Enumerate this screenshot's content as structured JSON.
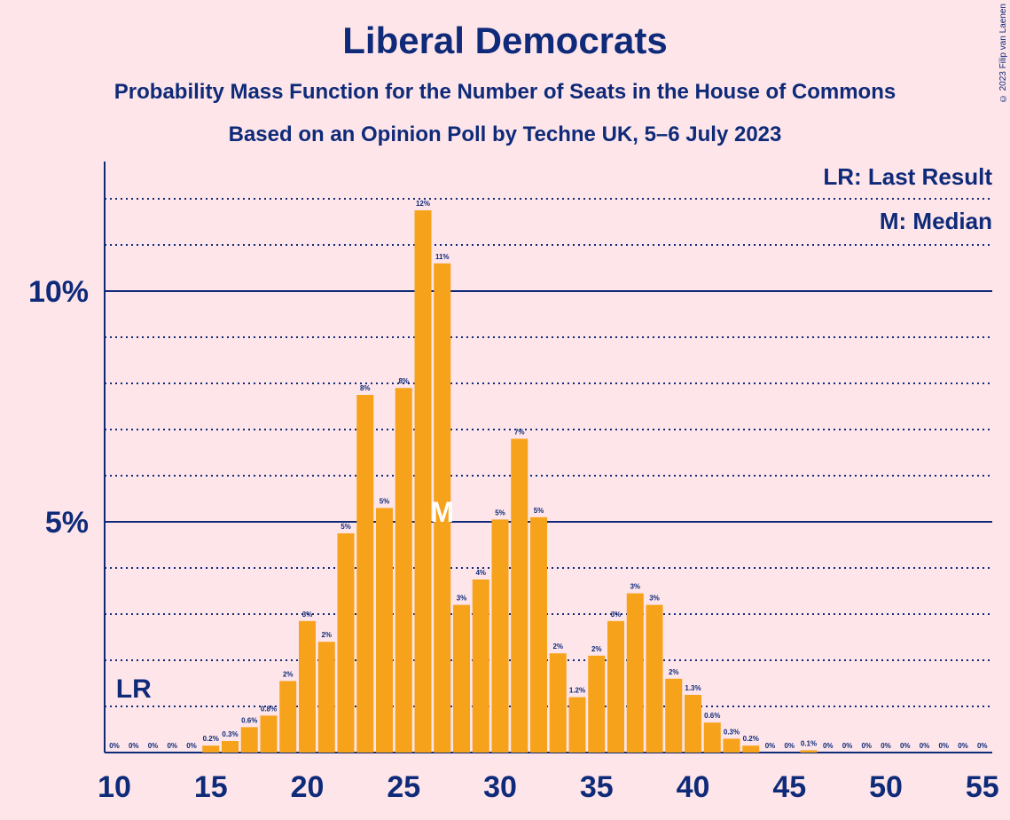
{
  "header": {
    "title": "Liberal Democrats",
    "subtitle": "Probability Mass Function for the Number of Seats in the House of Commons",
    "subtitle2": "Based on an Opinion Poll by Techne UK, 5–6 July 2023"
  },
  "legend": {
    "last_result": "LR: Last Result",
    "median": "M: Median"
  },
  "copyright": "© 2023 Filip van Laenen",
  "colors": {
    "background": "#fde5ea",
    "bar": "#f7a21b",
    "text": "#0e2a78"
  },
  "chart_data": {
    "type": "bar",
    "x": [
      10,
      11,
      12,
      13,
      14,
      15,
      16,
      17,
      18,
      19,
      20,
      21,
      22,
      23,
      24,
      25,
      26,
      27,
      28,
      29,
      30,
      31,
      32,
      33,
      34,
      35,
      36,
      37,
      38,
      39,
      40,
      41,
      42,
      43,
      44,
      45,
      46,
      47,
      48,
      49,
      50,
      51,
      52,
      53,
      54,
      55
    ],
    "values": [
      0,
      0,
      0,
      0,
      0,
      0.15,
      0.25,
      0.55,
      0.8,
      1.55,
      2.85,
      2.4,
      4.75,
      7.75,
      5.3,
      7.9,
      11.75,
      10.6,
      3.2,
      3.75,
      5.05,
      6.8,
      5.1,
      2.15,
      1.2,
      2.1,
      2.85,
      3.45,
      3.2,
      1.6,
      1.25,
      0.65,
      0.3,
      0.15,
      0,
      0,
      0.05,
      0,
      0,
      0,
      0,
      0,
      0,
      0,
      0,
      0
    ],
    "labels": [
      "0%",
      "0%",
      "0%",
      "0%",
      "0%",
      "0.2%",
      "0.3%",
      "0.6%",
      "0.8%",
      "2%",
      "3%",
      "2%",
      "5%",
      "8%",
      "5%",
      "8%",
      "12%",
      "11%",
      "3%",
      "4%",
      "5%",
      "7%",
      "5%",
      "2%",
      "1.2%",
      "2%",
      "3%",
      "3%",
      "3%",
      "2%",
      "1.3%",
      "0.6%",
      "0.3%",
      "0.2%",
      "0%",
      "0%",
      "0.1%",
      "0%",
      "0%",
      "0%",
      "0%",
      "0%",
      "0%",
      "0%",
      "0%",
      "0%"
    ],
    "x_ticks": [
      10,
      15,
      20,
      25,
      30,
      35,
      40,
      45,
      50,
      55
    ],
    "y_ticks": [
      {
        "value": 5,
        "label": "5%"
      },
      {
        "value": 10,
        "label": "10%"
      }
    ],
    "ylim": [
      0,
      12.8
    ],
    "xlim": [
      10,
      55
    ],
    "last_result_seat": 11,
    "last_result_label": "LR",
    "median_seat": 27,
    "median_label": "M",
    "grid": "dotted minor lines every 1%, solid lines at 5% and 10%"
  }
}
